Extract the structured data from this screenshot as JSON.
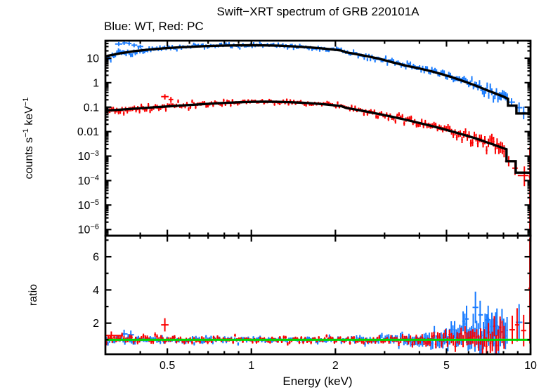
{
  "chart_data": {
    "type": "scatter",
    "title": "Swift−XRT spectrum of GRB 220101A",
    "subtitle": "Blue: WT, Red: PC",
    "xlabel": "Energy (keV)",
    "ylabel_top_parts": [
      {
        "t": "counts s"
      },
      {
        "sup": "−1"
      },
      {
        "t": " keV"
      },
      {
        "sup": "−1"
      }
    ],
    "ylabel_bottom": "ratio",
    "x_range_kev": [
      0.3,
      10
    ],
    "x_ticks_major": [
      {
        "v": 0.5,
        "label": "0.5"
      },
      {
        "v": 1,
        "label": "1"
      },
      {
        "v": 2,
        "label": "2"
      },
      {
        "v": 5,
        "label": "5"
      },
      {
        "v": 10,
        "label": "10"
      }
    ],
    "x_ticks_minor": [
      0.4,
      0.6,
      0.7,
      0.8,
      0.9,
      3,
      4,
      6,
      7,
      8,
      9
    ],
    "colors": {
      "wt": "#1a7cff",
      "pc": "#fb0000",
      "model": "#000000",
      "reference": "#00d900",
      "axis": "#000000"
    },
    "random_seed": 7,
    "top_panel": {
      "y_range": [
        5.6e-07,
        52
      ],
      "y_ticks": [
        {
          "v": 10,
          "base": "10",
          "sup": ""
        },
        {
          "v": 1,
          "base": "1",
          "sup": ""
        },
        {
          "v": 0.1,
          "base": "0.1",
          "sup": ""
        },
        {
          "v": 0.01,
          "base": "0.01",
          "sup": ""
        },
        {
          "v": 0.001,
          "base": "10",
          "sup": "−3"
        },
        {
          "v": 0.0001,
          "base": "10",
          "sup": "−4"
        },
        {
          "v": 1e-05,
          "base": "10",
          "sup": "−5"
        },
        {
          "v": 1e-06,
          "base": "10",
          "sup": "−6"
        }
      ],
      "series": [
        {
          "name": "WT",
          "color_key": "wt",
          "seed": 7,
          "e_min": 0.3,
          "e_max": 8.3,
          "n_points": 262,
          "model": [
            [
              0.3,
              12
            ],
            [
              0.34,
              16
            ],
            [
              0.38,
              19.5
            ],
            [
              0.43,
              22.5
            ],
            [
              0.48,
              25
            ],
            [
              0.54,
              27.5
            ],
            [
              0.6,
              29
            ],
            [
              0.68,
              31
            ],
            [
              0.78,
              32.5
            ],
            [
              0.9,
              33.5
            ],
            [
              1.0,
              33.8
            ],
            [
              1.1,
              33.5
            ],
            [
              1.25,
              32.5
            ],
            [
              1.4,
              30.5
            ],
            [
              1.6,
              28
            ],
            [
              1.8,
              25
            ],
            [
              2.0,
              22
            ],
            [
              2.1,
              20.5
            ],
            [
              2.18,
              17.5
            ],
            [
              2.35,
              15
            ],
            [
              2.6,
              12
            ],
            [
              2.9,
              9.3
            ],
            [
              3.2,
              6.8
            ],
            [
              3.6,
              4.9
            ],
            [
              4.0,
              3.8
            ],
            [
              4.4,
              2.95
            ],
            [
              4.8,
              2.25
            ],
            [
              5.2,
              1.7
            ],
            [
              5.6,
              1.28
            ],
            [
              6.0,
              0.97
            ],
            [
              6.4,
              0.74
            ],
            [
              6.9,
              0.52
            ],
            [
              7.4,
              0.38
            ],
            [
              8.0,
              0.27
            ],
            [
              8.3,
              0.22
            ],
            [
              8.3,
              0.115
            ],
            [
              8.9,
              0.115
            ],
            [
              8.9,
              0.055
            ],
            [
              10.0,
              0.055
            ]
          ],
          "scatter_dex": [
            [
              0.3,
              0.1
            ],
            [
              0.5,
              0.05
            ],
            [
              1,
              0.045
            ],
            [
              2,
              0.05
            ],
            [
              3,
              0.06
            ],
            [
              5,
              0.08
            ],
            [
              7,
              0.12
            ],
            [
              8.3,
              0.16
            ]
          ],
          "err_dex": [
            [
              0.3,
              0.1
            ],
            [
              0.5,
              0.055
            ],
            [
              1,
              0.05
            ],
            [
              2,
              0.055
            ],
            [
              3,
              0.07
            ],
            [
              5,
              0.09
            ],
            [
              7,
              0.13
            ],
            [
              8.3,
              0.18
            ]
          ],
          "extra_points": [
            [
              0.335,
              38,
              0.325,
              0.345,
              31,
              46
            ],
            [
              0.35,
              42,
              0.345,
              0.36,
              35,
              50
            ],
            [
              0.365,
              40,
              0.36,
              0.372,
              33,
              48
            ],
            [
              0.38,
              34,
              0.372,
              0.39,
              28,
              41
            ],
            [
              0.4,
              30,
              0.39,
              0.41,
              25,
              36
            ],
            [
              8.55,
              0.16,
              8.3,
              8.8,
              0.11,
              0.23
            ],
            [
              9.1,
              0.095,
              8.8,
              9.35,
              0.055,
              0.155
            ],
            [
              9.45,
              0.06,
              9.35,
              9.6,
              0.032,
              0.105
            ]
          ]
        },
        {
          "name": "PC",
          "color_key": "pc",
          "seed": 19,
          "e_min": 0.3,
          "e_max": 8.1,
          "n_points": 228,
          "model": [
            [
              0.3,
              0.072
            ],
            [
              0.34,
              0.079
            ],
            [
              0.38,
              0.087
            ],
            [
              0.43,
              0.096
            ],
            [
              0.48,
              0.104
            ],
            [
              0.54,
              0.113
            ],
            [
              0.6,
              0.122
            ],
            [
              0.68,
              0.134
            ],
            [
              0.78,
              0.147
            ],
            [
              0.9,
              0.158
            ],
            [
              1.0,
              0.165
            ],
            [
              1.1,
              0.168
            ],
            [
              1.25,
              0.165
            ],
            [
              1.4,
              0.158
            ],
            [
              1.6,
              0.147
            ],
            [
              1.8,
              0.133
            ],
            [
              2.0,
              0.118
            ],
            [
              2.1,
              0.11
            ],
            [
              2.18,
              0.094
            ],
            [
              2.35,
              0.081
            ],
            [
              2.6,
              0.065
            ],
            [
              2.9,
              0.051
            ],
            [
              3.2,
              0.04
            ],
            [
              3.6,
              0.03
            ],
            [
              4.0,
              0.0225
            ],
            [
              4.4,
              0.0172
            ],
            [
              4.8,
              0.0133
            ],
            [
              5.2,
              0.0104
            ],
            [
              5.6,
              0.0082
            ],
            [
              6.0,
              0.0065
            ],
            [
              6.4,
              0.0052
            ],
            [
              6.9,
              0.0038
            ],
            [
              7.4,
              0.0029
            ],
            [
              8.0,
              0.0021
            ],
            [
              8.2,
              0.0019
            ],
            [
              8.2,
              0.00062
            ],
            [
              8.85,
              0.00062
            ],
            [
              8.85,
              0.00021
            ],
            [
              10.0,
              0.00021
            ]
          ],
          "scatter_dex": [
            [
              0.3,
              0.09
            ],
            [
              0.5,
              0.07
            ],
            [
              1,
              0.05
            ],
            [
              2,
              0.055
            ],
            [
              3,
              0.07
            ],
            [
              5,
              0.1
            ],
            [
              7,
              0.15
            ],
            [
              8.1,
              0.2
            ]
          ],
          "err_dex": [
            [
              0.3,
              0.1
            ],
            [
              0.5,
              0.08
            ],
            [
              1,
              0.055
            ],
            [
              2,
              0.06
            ],
            [
              3,
              0.08
            ],
            [
              5,
              0.11
            ],
            [
              7,
              0.17
            ],
            [
              8.1,
              0.25
            ]
          ],
          "extra_points": [
            [
              0.49,
              0.27,
              0.475,
              0.505,
              0.205,
              0.335
            ],
            [
              0.515,
              0.205,
              0.505,
              0.525,
              0.15,
              0.26
            ],
            [
              8.35,
              0.00062,
              8.1,
              8.6,
              0.00038,
              0.001
            ],
            [
              8.8,
              0.00032,
              8.6,
              9.0,
              0.00017,
              0.00055
            ],
            [
              9.5,
              0.00016,
              9.0,
              9.85,
              6e-05,
              0.00038
            ],
            [
              9.95,
              0.00014,
              9.85,
              10.0,
              1e-06,
              0.0023
            ]
          ]
        }
      ]
    },
    "bottom_panel": {
      "y_range": [
        0.127,
        7.27
      ],
      "y_ticks_major": [
        {
          "v": 2,
          "label": "2"
        },
        {
          "v": 4,
          "label": "4"
        },
        {
          "v": 6,
          "label": "6"
        }
      ],
      "y_ticks_minor": [
        1,
        3,
        5,
        7
      ],
      "reference_line": {
        "value": 1,
        "color_key": "reference"
      },
      "series": [
        {
          "name": "WT ratio",
          "color_key": "wt",
          "seed": 23,
          "e_min": 0.3,
          "e_max": 8.3,
          "n_points": 238,
          "mean": [
            [
              0.3,
              0.98
            ],
            [
              0.6,
              1.0
            ],
            [
              3.0,
              1.0
            ],
            [
              5.0,
              1.05
            ],
            [
              6.0,
              1.3
            ],
            [
              7.0,
              1.4
            ],
            [
              8.3,
              1.25
            ]
          ],
          "scatter": [
            [
              0.3,
              0.1
            ],
            [
              2,
              0.08
            ],
            [
              4,
              0.18
            ],
            [
              5.5,
              0.35
            ],
            [
              8.3,
              0.55
            ]
          ],
          "err": [
            [
              0.3,
              0.13
            ],
            [
              1,
              0.09
            ],
            [
              2,
              0.11
            ],
            [
              3,
              0.16
            ],
            [
              4,
              0.28
            ],
            [
              5,
              0.45
            ],
            [
              6,
              0.65
            ],
            [
              7,
              0.85
            ],
            [
              8.3,
              0.8
            ]
          ],
          "extra_points": [
            [
              0.35,
              1.35,
              0.345,
              0.36,
              1.1,
              1.6
            ],
            [
              0.37,
              1.3,
              0.36,
              0.38,
              1.05,
              1.55
            ],
            [
              5.9,
              2.25,
              5.8,
              6.0,
              1.45,
              3.05
            ],
            [
              6.35,
              2.95,
              6.2,
              6.5,
              2.0,
              3.9
            ],
            [
              6.6,
              2.5,
              6.5,
              6.75,
              1.65,
              3.35
            ],
            [
              7.05,
              2.2,
              6.9,
              7.2,
              1.35,
              3.05
            ],
            [
              7.5,
              1.85,
              7.35,
              7.65,
              1.05,
              2.65
            ],
            [
              9.1,
              2.05,
              8.85,
              9.35,
              0.95,
              3.15
            ]
          ]
        },
        {
          "name": "PC ratio",
          "color_key": "pc",
          "seed": 5,
          "e_min": 0.3,
          "e_max": 8.1,
          "n_points": 205,
          "mean": [
            [
              0.3,
              1.08
            ],
            [
              0.6,
              1.0
            ],
            [
              5.0,
              1.0
            ],
            [
              7.0,
              1.05
            ],
            [
              8.1,
              1.15
            ]
          ],
          "scatter": [
            [
              0.3,
              0.12
            ],
            [
              2,
              0.09
            ],
            [
              4,
              0.15
            ],
            [
              6,
              0.3
            ],
            [
              8.1,
              0.5
            ]
          ],
          "err": [
            [
              0.3,
              0.16
            ],
            [
              1,
              0.09
            ],
            [
              2,
              0.1
            ],
            [
              3,
              0.13
            ],
            [
              4,
              0.2
            ],
            [
              5,
              0.28
            ],
            [
              6,
              0.4
            ],
            [
              7,
              0.55
            ],
            [
              8.1,
              0.7
            ]
          ],
          "extra_points": [
            [
              0.315,
              1.25,
              0.3,
              0.345,
              1.0,
              1.5
            ],
            [
              0.49,
              1.9,
              0.475,
              0.505,
              1.5,
              2.3
            ],
            [
              8.6,
              1.6,
              8.4,
              8.8,
              0.75,
              2.45
            ],
            [
              8.95,
              1.9,
              8.8,
              9.1,
              0.9,
              2.9
            ],
            [
              9.45,
              1.55,
              9.25,
              9.65,
              0.6,
              2.5
            ],
            [
              9.95,
              4.1,
              9.82,
              10.0,
              0.78,
              7.15
            ]
          ]
        }
      ]
    }
  }
}
